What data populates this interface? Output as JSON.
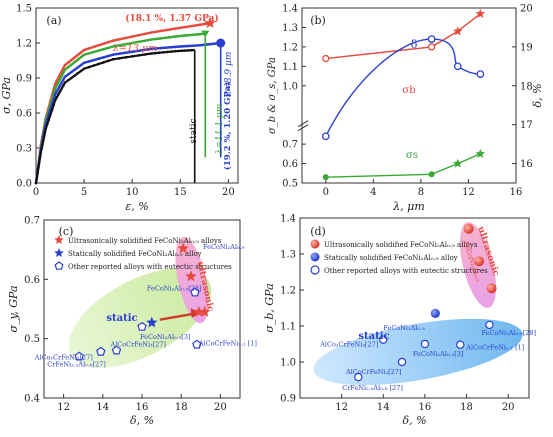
{
  "chart_data": [
    {
      "panel": "(a)",
      "type": "line",
      "xlabel": "ε, %",
      "ylabel": "σ, GPa",
      "xlim": [
        0,
        21
      ],
      "ylim": [
        0,
        1.5
      ],
      "xticks": [
        0,
        5,
        10,
        15,
        20
      ],
      "yticks": [
        0.0,
        0.3,
        0.6,
        0.9,
        1.2,
        1.5
      ],
      "series": [
        {
          "name": "λ=13 μm",
          "color": "#e84a3c",
          "x": [
            0,
            0.5,
            1,
            2,
            3,
            5,
            8,
            12,
            15,
            18.1
          ],
          "y": [
            0,
            0.32,
            0.55,
            0.85,
            1.01,
            1.14,
            1.22,
            1.29,
            1.33,
            1.37
          ]
        },
        {
          "name": "λ=11.1 μm",
          "color": "#3aaa35",
          "x": [
            0,
            0.5,
            1,
            2,
            3,
            5,
            8,
            12,
            15,
            17.6
          ],
          "y": [
            0,
            0.3,
            0.53,
            0.81,
            0.97,
            1.1,
            1.17,
            1.23,
            1.26,
            1.28
          ]
        },
        {
          "name": "λ=8.9 μm",
          "color": "#2a3fd0",
          "x": [
            0,
            0.5,
            1,
            2,
            3,
            5,
            8,
            12,
            15,
            17,
            19.2
          ],
          "y": [
            0,
            0.28,
            0.5,
            0.76,
            0.91,
            1.03,
            1.1,
            1.15,
            1.17,
            1.18,
            1.2
          ]
        },
        {
          "name": "static",
          "color": "#111111",
          "x": [
            0,
            0.5,
            1,
            2,
            3,
            5,
            8,
            12,
            14.5,
            16.5
          ],
          "y": [
            0,
            0.26,
            0.46,
            0.71,
            0.86,
            0.98,
            1.06,
            1.11,
            1.13,
            1.14
          ]
        }
      ],
      "drop_lines": [
        {
          "x": 16.5,
          "from": 1.14,
          "to": 0.0,
          "color": "#111111"
        },
        {
          "x": 17.6,
          "from": 1.28,
          "to": 0.22,
          "color": "#3aaa35"
        },
        {
          "x": 19.2,
          "from": 1.2,
          "to": 0.22,
          "color": "#2a3fd0"
        }
      ],
      "annotations": [
        {
          "text": "(a)"
        },
        {
          "text": "(18.1 %, 1.37 GPa)",
          "color": "#e84a3c"
        },
        {
          "text": "λ=13 μm",
          "color": "#e84a3c"
        },
        {
          "text": "λ=11.1 μm",
          "color": "#3aaa35"
        },
        {
          "text": "λ=8.9 μm",
          "color": "#2a3fd0"
        },
        {
          "text": "(19.2 %, 1.20 GPa)",
          "color": "#2a3fd0"
        },
        {
          "text": "static",
          "color": "#111111"
        }
      ]
    },
    {
      "panel": "(b)",
      "type": "line",
      "xlabel": "λ, μm",
      "ylabel": "σ_b & σ_s, GPa",
      "y2label": "δ, %",
      "xlim": [
        -2,
        16
      ],
      "ylim": [
        0.5,
        1.4
      ],
      "y2lim": [
        15.5,
        20
      ],
      "xticks": [
        0,
        4,
        8,
        12,
        16
      ],
      "yticks_top": [
        1.0,
        1.1,
        1.2,
        1.3,
        1.4
      ],
      "yticks_bottom": [
        0.5,
        0.6,
        0.7
      ],
      "y2ticks": [
        16,
        17,
        18,
        19,
        20
      ],
      "series": [
        {
          "name": "σ_b",
          "color": "#e84a3c",
          "axis": "left",
          "x": [
            0,
            8.9,
            11.1,
            13
          ],
          "y": [
            1.14,
            1.2,
            1.28,
            1.37
          ]
        },
        {
          "name": "σ_s",
          "color": "#3aaa35",
          "axis": "left",
          "x": [
            0,
            8.9,
            11.1,
            13
          ],
          "y": [
            0.53,
            0.545,
            0.6,
            0.65
          ]
        },
        {
          "name": "δ",
          "color": "#2a3fd0",
          "axis": "right",
          "x": [
            0,
            8.9,
            11.1,
            13
          ],
          "y": [
            16.7,
            19.2,
            18.5,
            18.3
          ]
        }
      ],
      "annotations": [
        {
          "text": "(b)"
        },
        {
          "text": "δ",
          "color": "#2a3fd0"
        },
        {
          "text": "σb",
          "color": "#e84a3c"
        },
        {
          "text": "σs",
          "color": "#3aaa35"
        }
      ]
    },
    {
      "panel": "(c)",
      "type": "scatter",
      "xlabel": "δ, %",
      "ylabel": "σ_y, GPa",
      "xlim": [
        11,
        21
      ],
      "ylim": [
        0.4,
        0.7
      ],
      "xticks": [
        12,
        14,
        16,
        18,
        20
      ],
      "yticks": [
        0.4,
        0.5,
        0.6,
        0.7
      ],
      "legend": [
        {
          "marker": "star",
          "color": "#e84a3c",
          "label": "Ultrasonically solidified FeCoNi₂Al₀.₉ alloys"
        },
        {
          "marker": "star",
          "color": "#2a3fd0",
          "label": "Statically solidified FeCoNi₂Al₀.₉ alloy"
        },
        {
          "marker": "pentagon-open",
          "color": "#2a3fd0",
          "label": "Other reported alloys with eutectic structures"
        }
      ],
      "series": [
        {
          "name": "Ultrasonically solidified",
          "color": "#e84a3c",
          "marker": "star",
          "x": [
            18.1,
            18.5,
            18.9,
            19.2
          ],
          "y": [
            0.652,
            0.605,
            0.545,
            0.545
          ]
        },
        {
          "name": "Statically solidified",
          "color": "#2a3fd0",
          "marker": "star",
          "x": [
            16.5
          ],
          "y": [
            0.527
          ]
        },
        {
          "name": "Other reported alloys",
          "color": "#2a3fd0",
          "marker": "pentagon-open",
          "x": [
            12.8,
            13.9,
            14.7,
            16.0,
            18.7,
            18.8
          ],
          "y": [
            0.47,
            0.478,
            0.48,
            0.52,
            0.578,
            0.49
          ],
          "labels": [
            "CrFeNi₂.₅Al₀.₈[27]",
            "AlCo₂CrFeNi₃[27]",
            "AlCoCrFeNi₃[27]",
            "FeCoNi₂Al₀.₉[3]",
            "FeCoNi₂Al₀.₉[28]",
            "AlCoCrFeNi₂.₁ [1]"
          ]
        }
      ],
      "annotations": [
        {
          "text": "(c)"
        },
        {
          "text": "FeCoNi₂Al₀.₉",
          "color": "#2a3fd0"
        },
        {
          "text": "static",
          "color": "#2a3fd0"
        },
        {
          "text": "ultrasonic",
          "color": "#e84a3c"
        }
      ]
    },
    {
      "panel": "(d)",
      "type": "scatter",
      "xlabel": "δ, %",
      "ylabel": "σ_b, GPa",
      "xlim": [
        10,
        21
      ],
      "ylim": [
        0.9,
        1.4
      ],
      "xticks": [
        12,
        14,
        16,
        18,
        20
      ],
      "yticks": [
        0.9,
        1.0,
        1.1,
        1.2,
        1.3,
        1.4
      ],
      "legend": [
        {
          "marker": "circle",
          "color": "#e84a3c",
          "label": "Ultrasonically solidified FeCoNi₂Al₀.₉ alloys"
        },
        {
          "marker": "circle",
          "color": "#2a3fd0",
          "label": "Statically solidified FeCoNi₂Al₀.₉ alloy"
        },
        {
          "marker": "circle-open",
          "color": "#2a3fd0",
          "label": "Other reported alloys with eutectic structures"
        }
      ],
      "series": [
        {
          "name": "Ultrasonically solidified",
          "color": "#e84a3c",
          "marker": "circle",
          "x": [
            18.1,
            18.6,
            19.2
          ],
          "y": [
            1.37,
            1.28,
            1.205
          ]
        },
        {
          "name": "Statically solidified",
          "color": "#2a3fd0",
          "marker": "circle",
          "x": [
            16.5
          ],
          "y": [
            1.135
          ]
        },
        {
          "name": "Other reported alloys",
          "color": "#2a3fd0",
          "marker": "circle-open",
          "x": [
            12.8,
            14.0,
            14.9,
            16.0,
            17.7,
            19.1
          ],
          "y": [
            0.958,
            1.062,
            1.0,
            1.05,
            1.048,
            1.103
          ],
          "labels": [
            "CrFeNi₂.₅Al₀.₈ [27]",
            "AlCo₂CrFeNi₃[27]",
            "AlCoCrFeNi₃[27]",
            "FeCoNi₂Al₀.₉[3]",
            "AlCoCrFeNi₂.₁ [1]",
            "FeCoNi₂Al₀.₉[28]"
          ]
        }
      ],
      "annotations": [
        {
          "text": "(d)"
        },
        {
          "text": "FeCoNi₂Al₀.₉",
          "color": "#2a3fd0"
        },
        {
          "text": "static",
          "color": "#2a3fd0"
        },
        {
          "text": "ultrasonic",
          "color": "#e84a3c"
        },
        {
          "text": "FeCoNi₂Al₀.₉",
          "color": "#e84a3c"
        }
      ]
    }
  ]
}
